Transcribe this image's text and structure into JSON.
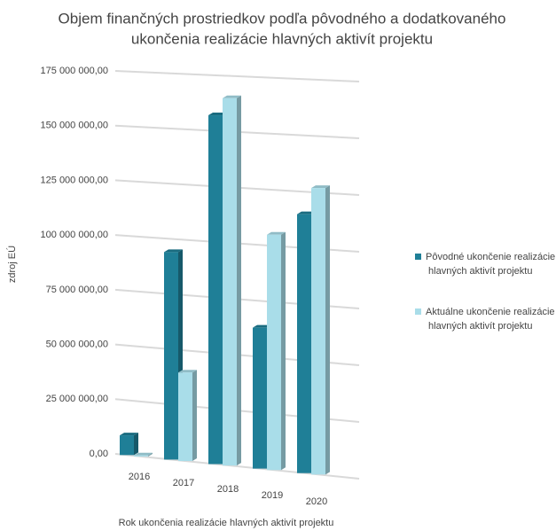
{
  "chart_data": {
    "type": "bar3d",
    "title": [
      "Objem finančných prostriedkov podľa pôvodného a dodatkovaného",
      "ukončenia realizácie hlavných aktivít projektu"
    ],
    "x_label": "Rok ukončenia realizácie hlavných aktivít projektu",
    "y_label": "zdroj EÚ",
    "categories": [
      "2016",
      "2017",
      "2018",
      "2019",
      "2020"
    ],
    "series": [
      {
        "name": "Pôvodné ukončenie realizácie hlavných aktivít projektu",
        "color": "#1f7f97",
        "values": [
          9000000,
          94000000,
          157000000,
          63000000,
          115000000
        ]
      },
      {
        "name": "Aktuálne ukončenie realizácie hlavných aktivít projektu",
        "color": "#a9dde9",
        "values": [
          500000,
          40000000,
          165000000,
          105000000,
          127000000
        ]
      }
    ],
    "ylim": [
      0,
      175000000
    ],
    "yticks": [
      {
        "value": 0,
        "label": "0,00"
      },
      {
        "value": 25000000,
        "label": "25 000 000,00"
      },
      {
        "value": 50000000,
        "label": "50 000 000,00"
      },
      {
        "value": 75000000,
        "label": "75 000 000,00"
      },
      {
        "value": 100000000,
        "label": "100 000 000,00"
      },
      {
        "value": 125000000,
        "label": "125 000 000,00"
      },
      {
        "value": 150000000,
        "label": "150 000 000,00"
      },
      {
        "value": 175000000,
        "label": "175 000 000,00"
      }
    ],
    "grid": true,
    "legend": "right"
  }
}
